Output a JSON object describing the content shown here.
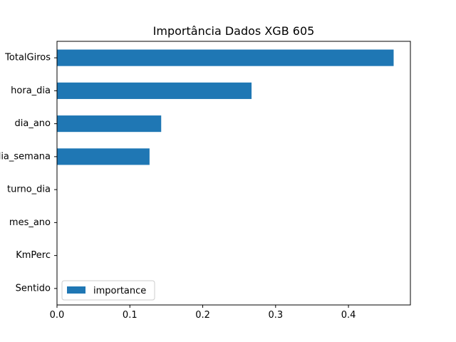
{
  "chart_data": {
    "type": "bar",
    "orientation": "horizontal",
    "title": "Importância Dados XGB 605",
    "xlabel": "",
    "ylabel": "",
    "categories": [
      "TotalGiros",
      "hora_dia",
      "dia_ano",
      "dia_semana",
      "turno_dia",
      "mes_ano",
      "KmPerc",
      "Sentido"
    ],
    "series": [
      {
        "name": "importance",
        "values": [
          0.462,
          0.267,
          0.143,
          0.127,
          0.0,
          0.0,
          0.0,
          0.0
        ]
      }
    ],
    "xlim": [
      0.0,
      0.485
    ],
    "xticks": [
      "0.0",
      "0.1",
      "0.2",
      "0.3",
      "0.4"
    ],
    "grid": false,
    "legend_position": "lower-left",
    "bar_color": "#1f77b4"
  }
}
